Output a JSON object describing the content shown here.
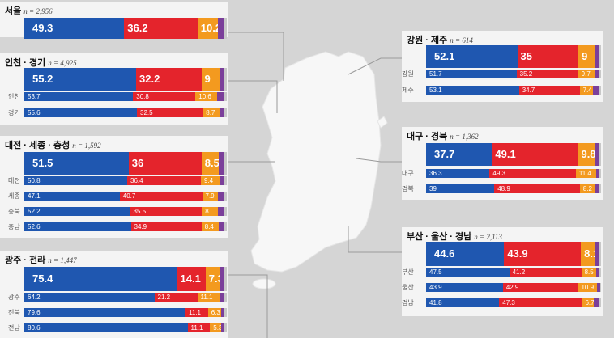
{
  "chart_data": {
    "type": "bar",
    "orientation": "horizontal",
    "stacked": true,
    "xlim": [
      0,
      100
    ],
    "colors": {
      "blue": "#1f57b0",
      "red": "#e4242c",
      "orange": "#f39a1f",
      "purple": "#7b3f9a",
      "gray": "#c8c8c8"
    },
    "panels": [
      {
        "id": "seoul",
        "title": "서울",
        "n": "n = 2,956",
        "main": {
          "values": [
            49.3,
            36.2,
            10.2,
            2.6,
            1.7
          ]
        },
        "rows": []
      },
      {
        "id": "incheon",
        "title": "인천 · 경기",
        "n": "n = 4,925",
        "main": {
          "values": [
            55.2,
            32.2,
            9.0,
            2.2,
            1.4
          ]
        },
        "rows": [
          {
            "label": "인천",
            "values": [
              53.7,
              30.8,
              10.6,
              3.1,
              1.8
            ]
          },
          {
            "label": "경기",
            "values": [
              55.6,
              32.5,
              8.7,
              2.0,
              1.2
            ]
          }
        ]
      },
      {
        "id": "daejeon",
        "title": "대전 · 세종 · 충청",
        "n": "n = 1,592",
        "main": {
          "values": [
            51.5,
            36.0,
            8.5,
            2.4,
            1.6
          ]
        },
        "rows": [
          {
            "label": "대전",
            "values": [
              50.8,
              36.4,
              9.4,
              2.0,
              1.4
            ]
          },
          {
            "label": "세종",
            "values": [
              47.1,
              40.7,
              7.9,
              2.7,
              1.6
            ]
          },
          {
            "label": "충북",
            "values": [
              52.2,
              35.5,
              8.0,
              2.5,
              1.8
            ]
          },
          {
            "label": "충남",
            "values": [
              52.6,
              34.9,
              8.4,
              2.4,
              1.7
            ]
          }
        ]
      },
      {
        "id": "gwangju",
        "title": "광주 · 전라",
        "n": "n = 1,447",
        "main": {
          "values": [
            75.4,
            14.1,
            7.3,
            1.8,
            1.4
          ]
        },
        "rows": [
          {
            "label": "광주",
            "values": [
              64.2,
              21.2,
              11.1,
              2.0,
              1.5
            ]
          },
          {
            "label": "전북",
            "values": [
              79.6,
              11.1,
              6.3,
              1.6,
              1.4
            ]
          },
          {
            "label": "전남",
            "values": [
              80.6,
              11.1,
              5.3,
              1.6,
              1.4
            ]
          }
        ]
      },
      {
        "id": "gangwon",
        "title": "강원 · 제주",
        "n": "n = 614",
        "main": {
          "values": [
            52.1,
            35.0,
            9.0,
            2.4,
            1.5
          ]
        },
        "rows": [
          {
            "label": "강원",
            "values": [
              51.7,
              35.2,
              9.7,
              2.0,
              1.4
            ]
          },
          {
            "label": "제주",
            "values": [
              53.1,
              34.7,
              7.4,
              3.2,
              1.6
            ]
          }
        ]
      },
      {
        "id": "daegu",
        "title": "대구 · 경북",
        "n": "n = 1,362",
        "main": {
          "values": [
            37.7,
            49.1,
            9.8,
            2.0,
            1.4
          ]
        },
        "rows": [
          {
            "label": "대구",
            "values": [
              36.3,
              49.3,
              11.4,
              1.7,
              1.3
            ]
          },
          {
            "label": "경북",
            "values": [
              39.0,
              48.9,
              8.2,
              2.4,
              1.5
            ]
          }
        ]
      },
      {
        "id": "busan",
        "title": "부산 · 울산 · 경남",
        "n": "n = 2,113",
        "main": {
          "values": [
            44.6,
            43.9,
            8.1,
            2.0,
            1.4
          ]
        },
        "rows": [
          {
            "label": "부산",
            "values": [
              47.5,
              41.2,
              8.5,
              1.6,
              1.2
            ]
          },
          {
            "label": "울산",
            "values": [
              43.9,
              42.9,
              10.9,
              1.3,
              1.0
            ]
          },
          {
            "label": "경남",
            "values": [
              41.8,
              47.3,
              6.7,
              2.6,
              1.6
            ]
          }
        ]
      }
    ]
  }
}
